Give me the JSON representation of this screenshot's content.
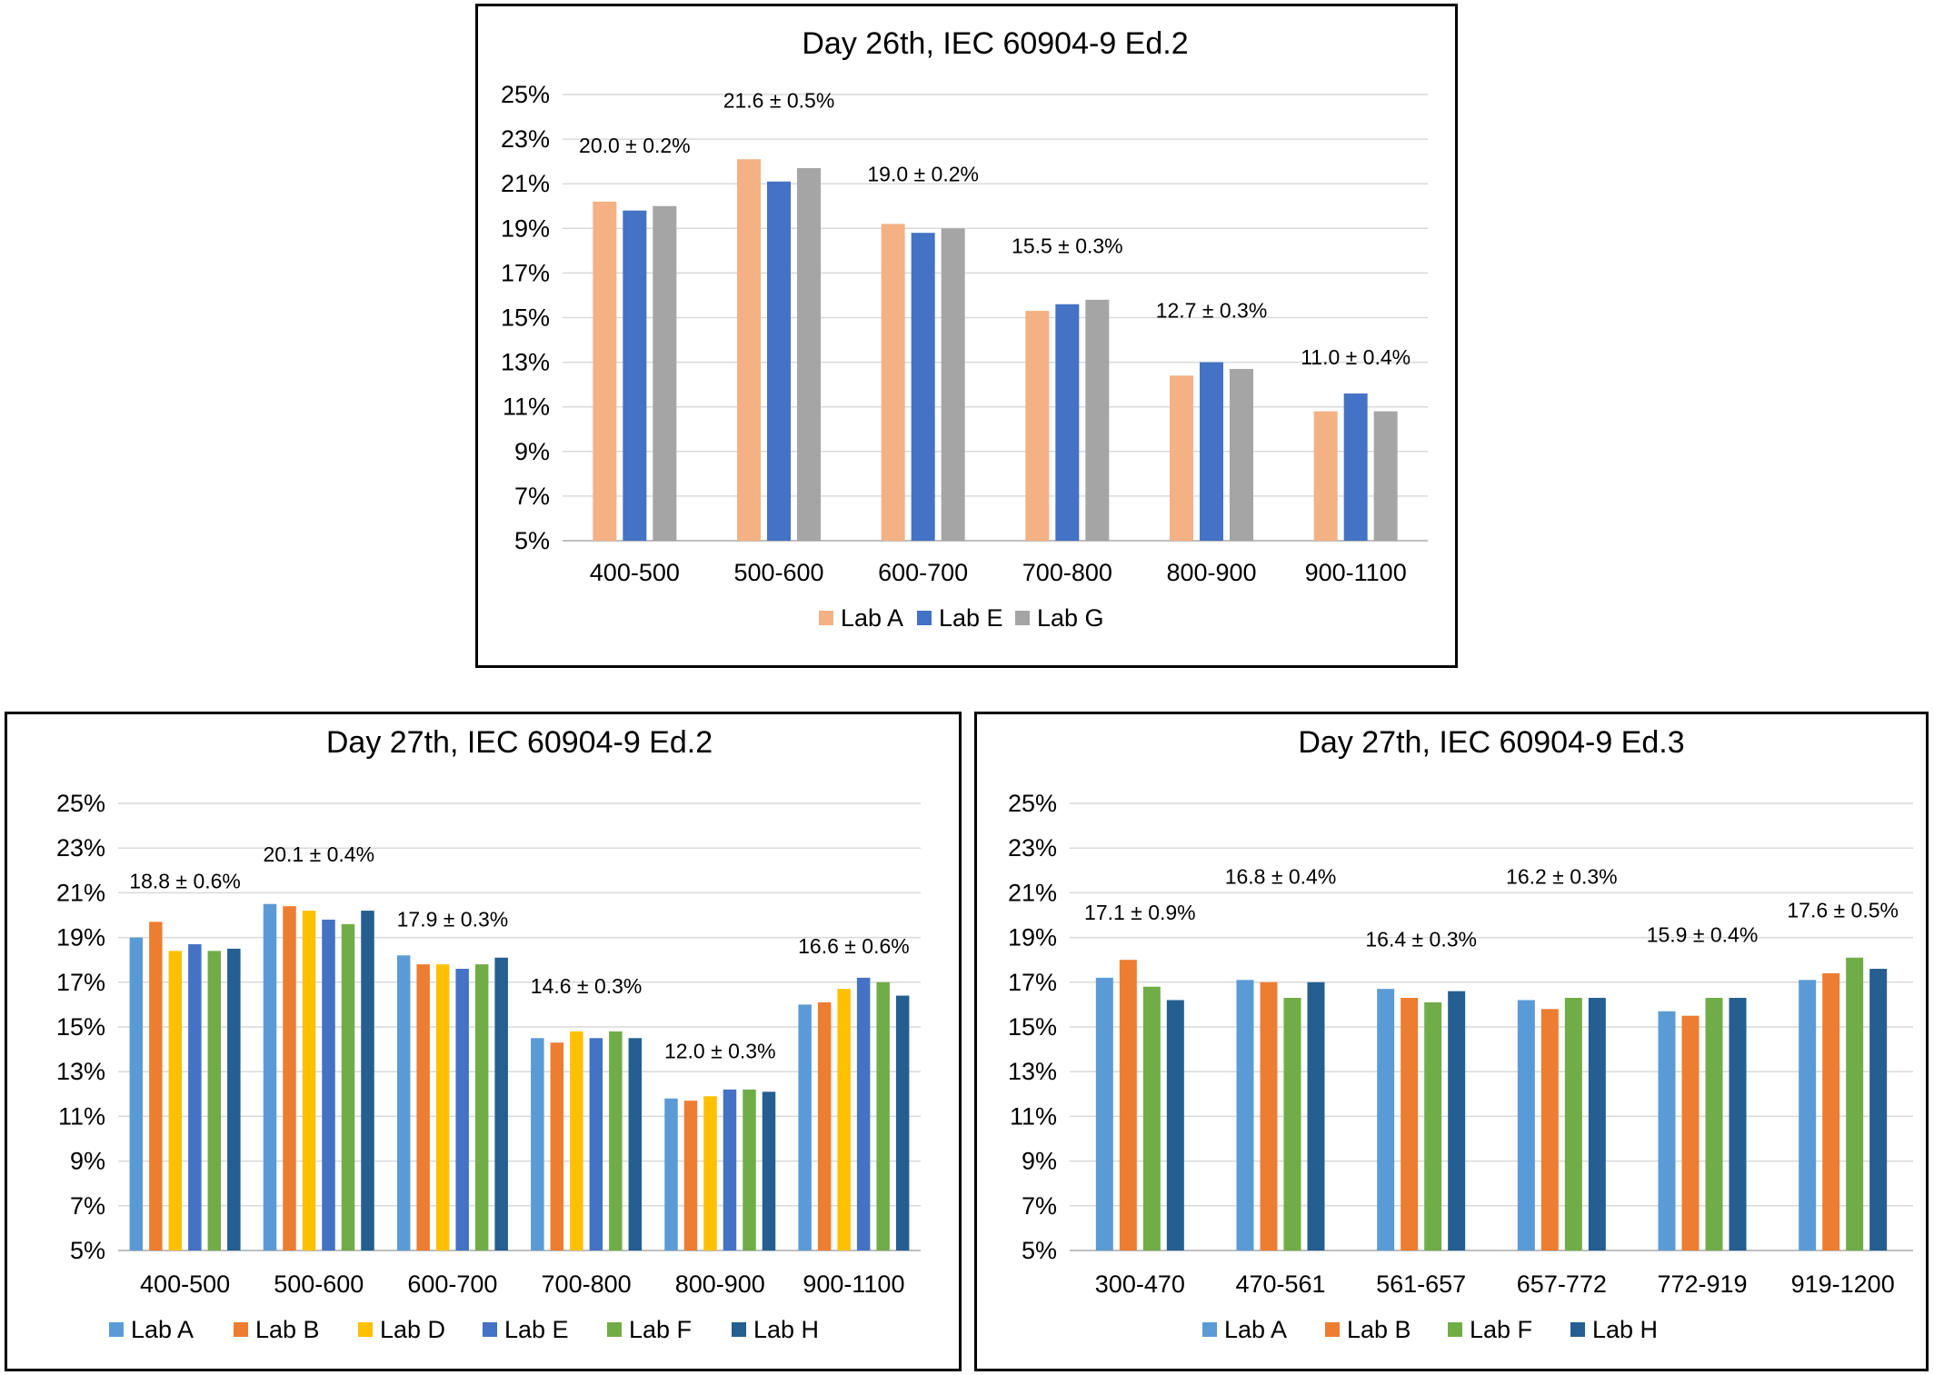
{
  "chart_data": [
    {
      "type": "bar",
      "title": "Day 26th,  IEC 60904-9 Ed.2",
      "categories": [
        "400-500",
        "500-600",
        "600-700",
        "700-800",
        "800-900",
        "900-1100"
      ],
      "series": [
        {
          "name": "Lab A",
          "color": "#f4b183",
          "values": [
            20.2,
            22.1,
            19.2,
            15.3,
            12.4,
            10.8
          ]
        },
        {
          "name": "Lab E",
          "color": "#4472c4",
          "values": [
            19.8,
            21.1,
            18.8,
            15.6,
            13.0,
            11.6
          ]
        },
        {
          "name": "Lab G",
          "color": "#a5a5a5",
          "values": [
            20.0,
            21.7,
            19.0,
            15.8,
            12.7,
            10.8
          ]
        }
      ],
      "annotations": [
        "20.0 ± 0.2%",
        "21.6 ± 0.5%",
        "19.0 ± 0.2%",
        "15.5 ± 0.3%",
        "12.7 ± 0.3%",
        "11.0 ± 0.4%"
      ],
      "annotation_values": [
        22.4,
        24.4,
        21.1,
        17.9,
        15.0,
        12.9
      ],
      "ylim": [
        5,
        25
      ],
      "yticks": [
        "5%",
        "7%",
        "9%",
        "11%",
        "13%",
        "15%",
        "17%",
        "19%",
        "21%",
        "23%",
        "25%"
      ],
      "grid": true,
      "legend": "bottom"
    },
    {
      "type": "bar",
      "title": "Day 27th, IEC 60904-9 Ed.2",
      "categories": [
        "400-500",
        "500-600",
        "600-700",
        "700-800",
        "800-900",
        "900-1100"
      ],
      "series": [
        {
          "name": "Lab A",
          "color": "#5b9bd5",
          "values": [
            19.0,
            20.5,
            18.2,
            14.5,
            11.8,
            16.0
          ]
        },
        {
          "name": "Lab B",
          "color": "#ed7d31",
          "values": [
            19.7,
            20.4,
            17.8,
            14.3,
            11.7,
            16.1
          ]
        },
        {
          "name": "Lab D",
          "color": "#ffc000",
          "values": [
            18.4,
            20.2,
            17.8,
            14.8,
            11.9,
            16.7
          ]
        },
        {
          "name": "Lab E",
          "color": "#4472c4",
          "values": [
            18.7,
            19.8,
            17.6,
            14.5,
            12.2,
            17.2
          ]
        },
        {
          "name": "Lab F",
          "color": "#70ad47",
          "values": [
            18.4,
            19.6,
            17.8,
            14.8,
            12.2,
            17.0
          ]
        },
        {
          "name": "Lab H",
          "color": "#255e91",
          "values": [
            18.5,
            20.2,
            18.1,
            14.5,
            12.1,
            16.4
          ]
        }
      ],
      "annotations": [
        "18.8 ± 0.6%",
        "20.1 ± 0.4%",
        "17.9 ± 0.3%",
        "14.6 ± 0.3%",
        "12.0 ± 0.3%",
        "16.6 ± 0.6%"
      ],
      "annotation_values": [
        21.2,
        22.4,
        19.5,
        16.5,
        13.6,
        18.3
      ],
      "ylim": [
        5,
        25
      ],
      "yticks": [
        "5%",
        "7%",
        "9%",
        "11%",
        "13%",
        "15%",
        "17%",
        "19%",
        "21%",
        "23%",
        "25%"
      ],
      "grid": true,
      "legend": "bottom"
    },
    {
      "type": "bar",
      "title": "Day 27th, IEC 60904-9 Ed.3",
      "categories": [
        "300-470",
        "470-561",
        "561-657",
        "657-772",
        "772-919",
        "919-1200"
      ],
      "series": [
        {
          "name": "Lab A",
          "color": "#5b9bd5",
          "values": [
            17.2,
            17.1,
            16.7,
            16.2,
            15.7,
            17.1
          ]
        },
        {
          "name": "Lab B",
          "color": "#ed7d31",
          "values": [
            18.0,
            17.0,
            16.3,
            15.8,
            15.5,
            17.4
          ]
        },
        {
          "name": "Lab F",
          "color": "#70ad47",
          "values": [
            16.8,
            16.3,
            16.1,
            16.3,
            16.3,
            18.1
          ]
        },
        {
          "name": "Lab H",
          "color": "#255e91",
          "values": [
            16.2,
            17.0,
            16.6,
            16.3,
            16.3,
            17.6
          ]
        }
      ],
      "annotations": [
        "17.1 ± 0.9%",
        "16.8 ± 0.4%",
        "16.4 ± 0.3%",
        "16.2 ± 0.3%",
        "15.9 ± 0.4%",
        "17.6 ± 0.5%"
      ],
      "annotation_values": [
        19.8,
        21.4,
        18.6,
        21.4,
        18.8,
        19.9
      ],
      "ylim": [
        5,
        25
      ],
      "yticks": [
        "5%",
        "7%",
        "9%",
        "11%",
        "13%",
        "15%",
        "17%",
        "19%",
        "21%",
        "23%",
        "25%"
      ],
      "grid": true,
      "legend": "bottom"
    }
  ]
}
